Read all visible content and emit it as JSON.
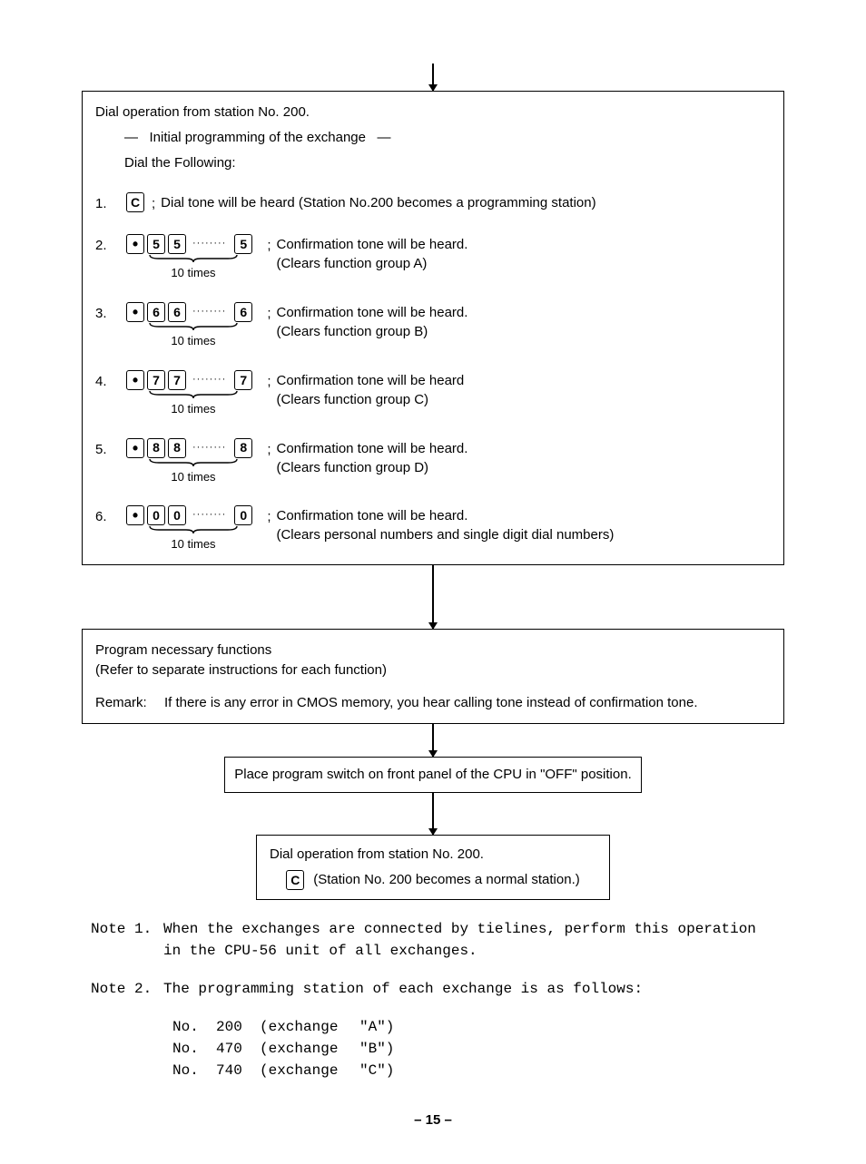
{
  "box1": {
    "line1": "Dial operation from station No. 200.",
    "line2_pre": "—",
    "line2": "Initial programming of the exchange",
    "line2_post": "—",
    "line3": "Dial the Following:",
    "step1": {
      "num": "1.",
      "key": "C",
      "desc": "Dial tone will be heard (Station No.200 becomes a programming station)"
    },
    "steps": [
      {
        "num": "2.",
        "digit": "5",
        "times": "10 times",
        "desc1": "Confirmation tone will be heard.",
        "desc2": "(Clears function group A)"
      },
      {
        "num": "3.",
        "digit": "6",
        "times": "10 times",
        "desc1": "Confirmation tone will be heard.",
        "desc2": "(Clears function group B)"
      },
      {
        "num": "4.",
        "digit": "7",
        "times": "10 times",
        "desc1": "Confirmation tone will be heard",
        "desc2": "(Clears function group C)"
      },
      {
        "num": "5.",
        "digit": "8",
        "times": "10 times",
        "desc1": "Confirmation tone will be heard.",
        "desc2": "(Clears function group D)"
      },
      {
        "num": "6.",
        "digit": "0",
        "times": "10 times",
        "desc1": "Confirmation tone will be heard.",
        "desc2": "(Clears personal numbers and single digit dial numbers)"
      }
    ]
  },
  "box2": {
    "line1": "Program necessary functions",
    "line2": "(Refer to separate instructions for each function)",
    "remark_lbl": "Remark:",
    "remark_txt": "If there is any error in CMOS memory, you hear calling tone instead of confirmation tone."
  },
  "box3": {
    "text": "Place program switch on front panel of the CPU in \"OFF\" position."
  },
  "box4": {
    "line1": "Dial operation from station No. 200.",
    "key": "C",
    "line2": "(Station No. 200 becomes a normal station.)"
  },
  "notes": {
    "n1_lbl": "Note 1.",
    "n1_txt": "When the exchanges are connected by tielines, perform this operation in the CPU-56 unit of all exchanges.",
    "n2_lbl": "Note 2.",
    "n2_txt": "The programming station of each exchange is as follows:",
    "exchanges": [
      {
        "no": "No.",
        "num": "200",
        "ex": "(exchange",
        "id": "\"A\")"
      },
      {
        "no": "No.",
        "num": "470",
        "ex": "(exchange",
        "id": "\"B\")"
      },
      {
        "no": "No.",
        "num": "740",
        "ex": "(exchange",
        "id": "\"C\")"
      }
    ]
  },
  "pagenum": "– 15 –",
  "dots": "········",
  "semicolon": ";"
}
